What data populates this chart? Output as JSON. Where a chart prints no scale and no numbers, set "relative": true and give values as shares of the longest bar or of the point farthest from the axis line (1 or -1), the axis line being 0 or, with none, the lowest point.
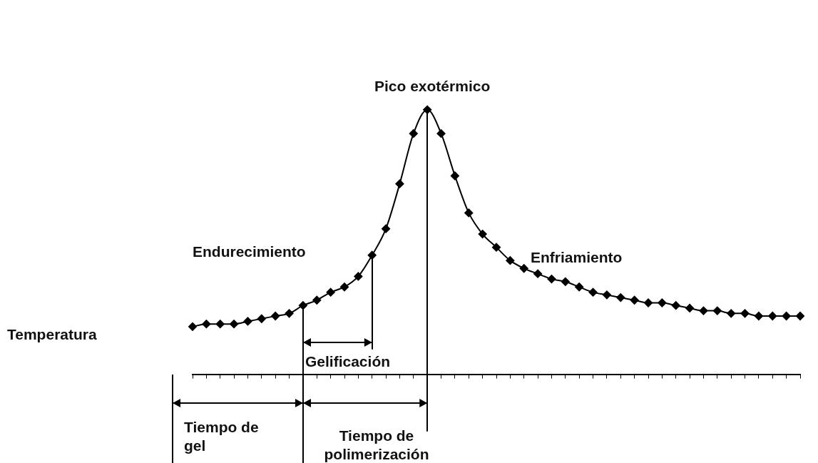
{
  "chart_data": {
    "type": "line",
    "relative": true,
    "marker": "diamond",
    "color": "#000000",
    "grid": false,
    "legend": false,
    "categories": [
      null,
      null,
      null,
      null,
      null,
      null,
      null,
      null,
      null,
      null,
      null,
      null,
      null,
      null,
      null,
      null,
      null,
      null,
      null,
      null,
      null,
      null,
      null,
      null,
      null,
      null,
      null,
      null,
      null,
      null,
      null,
      null,
      null,
      null,
      null,
      null,
      null,
      null,
      null,
      null,
      null,
      null,
      null,
      null,
      null
    ],
    "values": [
      0.18,
      0.19,
      0.19,
      0.19,
      0.2,
      0.21,
      0.22,
      0.23,
      0.26,
      0.28,
      0.31,
      0.33,
      0.37,
      0.45,
      0.55,
      0.72,
      0.91,
      1.0,
      0.91,
      0.75,
      0.61,
      0.53,
      0.48,
      0.43,
      0.4,
      0.38,
      0.36,
      0.35,
      0.33,
      0.31,
      0.3,
      0.29,
      0.28,
      0.27,
      0.27,
      0.26,
      0.25,
      0.24,
      0.24,
      0.23,
      0.23,
      0.22,
      0.22,
      0.22,
      0.22
    ],
    "annotations": [
      "Pico exotérmico",
      "Endurecimiento",
      "Enfriamiento",
      "Gelificación",
      "Tiempo de gel",
      "Tiempo de polimerización",
      "Temperatura"
    ]
  }
}
